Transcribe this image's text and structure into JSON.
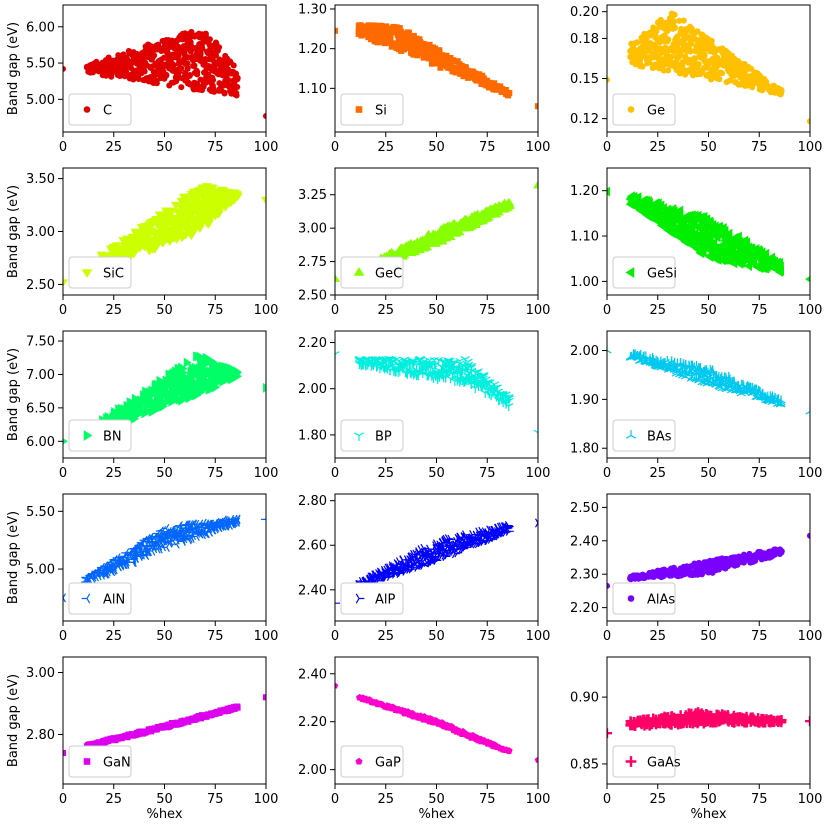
{
  "chart_data": [
    {
      "type": "scatter",
      "legend": "C",
      "color": "#e00000",
      "marker": "circle",
      "ylabel": "Band gap (eV)",
      "xlabel": "",
      "xlim": [
        0,
        100
      ],
      "xticks": [
        "0",
        "25",
        "50",
        "75",
        "100"
      ],
      "ylim": [
        4.55,
        6.3
      ],
      "yticks": [
        5.0,
        5.5,
        6.0
      ],
      "ytick_labels": [
        "5.00",
        "5.50",
        "6.00"
      ],
      "endpoints": [
        [
          0,
          5.42
        ],
        [
          100,
          4.77
        ]
      ],
      "cloud": {
        "x0": 12,
        "x1": 86,
        "peak": 68,
        "startLow": 5.36,
        "startHigh": 5.48,
        "peakLow": 5.12,
        "peakHigh": 6.0,
        "endLow": 5.05,
        "endHigh": 5.45
      },
      "legend_position": "lower-left"
    },
    {
      "type": "scatter",
      "legend": "Si",
      "color": "#ff6a00",
      "marker": "square",
      "ylabel": "",
      "xlabel": "",
      "xlim": [
        0,
        100
      ],
      "xticks": [
        "0",
        "25",
        "50",
        "75",
        "100"
      ],
      "ylim": [
        0.99,
        1.31
      ],
      "yticks": [
        1.1,
        1.2,
        1.3
      ],
      "ytick_labels": [
        "1.10",
        "1.20",
        "1.30"
      ],
      "endpoints": [
        [
          0,
          1.245
        ],
        [
          100,
          1.055
        ]
      ],
      "cloud": {
        "x0": 12,
        "x1": 86,
        "peak": 30,
        "startLow": 1.23,
        "startHigh": 1.26,
        "peakLow": 1.2,
        "peakHigh": 1.26,
        "endLow": 1.08,
        "endHigh": 1.09
      },
      "legend_position": "lower-left"
    },
    {
      "type": "scatter",
      "legend": "Ge",
      "color": "#ffc000",
      "marker": "circle",
      "ylabel": "",
      "xlabel": "",
      "xlim": [
        0,
        100
      ],
      "xticks": [
        "0",
        "25",
        "50",
        "75",
        "100"
      ],
      "ylim": [
        0.11,
        0.205
      ],
      "yticks": [
        0.12,
        0.15,
        0.18,
        0.2
      ],
      "ytick_labels": [
        "0.12",
        "0.15",
        "0.18",
        "0.20"
      ],
      "endpoints": [
        [
          0,
          0.149
        ],
        [
          100,
          0.118
        ]
      ],
      "cloud": {
        "x0": 12,
        "x1": 86,
        "peak": 32,
        "startLow": 0.16,
        "startHigh": 0.177,
        "peakLow": 0.155,
        "peakHigh": 0.2,
        "endLow": 0.138,
        "endHigh": 0.141
      },
      "legend_position": "lower-left"
    },
    {
      "type": "scatter",
      "legend": "SiC",
      "color": "#ccff00",
      "marker": "triangle-down",
      "ylabel": "Band gap (eV)",
      "xlabel": "",
      "xlim": [
        0,
        100
      ],
      "xticks": [
        "0",
        "25",
        "50",
        "75",
        "100"
      ],
      "ylim": [
        2.4,
        3.6
      ],
      "yticks": [
        2.5,
        3.0,
        3.5
      ],
      "ytick_labels": [
        "2.50",
        "3.00",
        "3.50"
      ],
      "endpoints": [
        [
          0,
          2.52
        ],
        [
          100,
          3.3
        ]
      ],
      "cloud": {
        "x0": 12,
        "x1": 86,
        "peak": 68,
        "startLow": 2.6,
        "startHigh": 2.68,
        "peakLow": 3.0,
        "peakHigh": 3.44,
        "endLow": 3.33,
        "endHigh": 3.37
      },
      "legend_position": "lower-left"
    },
    {
      "type": "scatter",
      "legend": "GeC",
      "color": "#88ff00",
      "marker": "triangle-up",
      "ylabel": "",
      "xlabel": "",
      "xlim": [
        0,
        100
      ],
      "xticks": [
        "0",
        "25",
        "50",
        "75",
        "100"
      ],
      "ylim": [
        2.5,
        3.45
      ],
      "yticks": [
        2.5,
        2.75,
        3.0,
        3.25
      ],
      "ytick_labels": [
        "2.50",
        "2.75",
        "3.00",
        "3.25"
      ],
      "endpoints": [
        [
          0,
          2.62
        ],
        [
          100,
          3.32
        ]
      ],
      "cloud": {
        "x0": 12,
        "x1": 86,
        "peak": 50,
        "startLow": 2.66,
        "startHigh": 2.7,
        "peakLow": 2.88,
        "peakHigh": 2.98,
        "endLow": 3.15,
        "endHigh": 3.2
      },
      "legend_position": "lower-left"
    },
    {
      "type": "scatter",
      "legend": "GeSi",
      "color": "#00ee00",
      "marker": "triangle-left",
      "ylabel": "",
      "xlabel": "",
      "xlim": [
        0,
        100
      ],
      "xticks": [
        "0",
        "25",
        "50",
        "75",
        "100"
      ],
      "ylim": [
        0.97,
        1.25
      ],
      "yticks": [
        1.0,
        1.1,
        1.2
      ],
      "ytick_labels": [
        "1.00",
        "1.10",
        "1.20"
      ],
      "endpoints": [
        [
          0,
          1.198
        ],
        [
          100,
          1.005
        ]
      ],
      "cloud": {
        "x0": 12,
        "x1": 86,
        "peak": 50,
        "startLow": 1.17,
        "startHigh": 1.19,
        "peakLow": 1.05,
        "peakHigh": 1.14,
        "endLow": 1.02,
        "endHigh": 1.04
      },
      "legend_position": "lower-left"
    },
    {
      "type": "scatter",
      "legend": "BN",
      "color": "#00ff66",
      "marker": "triangle-right",
      "ylabel": "Band gap (eV)",
      "xlabel": "",
      "xlim": [
        0,
        100
      ],
      "xticks": [
        "0",
        "25",
        "50",
        "75",
        "100"
      ],
      "ylim": [
        5.75,
        7.65
      ],
      "yticks": [
        6.0,
        6.5,
        7.0,
        7.5
      ],
      "ytick_labels": [
        "6.00",
        "6.50",
        "7.00",
        "7.50"
      ],
      "endpoints": [
        [
          0,
          6.0
        ],
        [
          100,
          6.8
        ]
      ],
      "cloud": {
        "x0": 12,
        "x1": 86,
        "peak": 67,
        "startLow": 6.08,
        "startHigh": 6.18,
        "peakLow": 6.7,
        "peakHigh": 7.3,
        "endLow": 6.95,
        "endHigh": 7.05
      },
      "legend_position": "lower-left"
    },
    {
      "type": "scatter",
      "legend": "BP",
      "color": "#00eedd",
      "marker": "tri-down",
      "ylabel": "",
      "xlabel": "",
      "xlim": [
        0,
        100
      ],
      "xticks": [
        "0",
        "25",
        "50",
        "75",
        "100"
      ],
      "ylim": [
        1.7,
        2.25
      ],
      "yticks": [
        1.8,
        2.0,
        2.2
      ],
      "ytick_labels": [
        "1.80",
        "2.00",
        "2.20"
      ],
      "endpoints": [
        [
          0,
          2.15
        ],
        [
          100,
          1.81
        ]
      ],
      "cloud": {
        "x0": 12,
        "x1": 86,
        "peak": 65,
        "startLow": 2.1,
        "startHigh": 2.13,
        "peakLow": 2.02,
        "peakHigh": 2.13,
        "endLow": 1.92,
        "endHigh": 1.96
      },
      "legend_position": "lower-left"
    },
    {
      "type": "scatter",
      "legend": "BAs",
      "color": "#00c8ee",
      "marker": "tri-up",
      "ylabel": "",
      "xlabel": "",
      "xlim": [
        0,
        100
      ],
      "xticks": [
        "0",
        "25",
        "50",
        "75",
        "100"
      ],
      "ylim": [
        1.78,
        2.04
      ],
      "yticks": [
        1.8,
        1.9,
        2.0
      ],
      "ytick_labels": [
        "1.80",
        "1.90",
        "2.00"
      ],
      "endpoints": [
        [
          0,
          2.0
        ],
        [
          100,
          1.875
        ]
      ],
      "cloud": {
        "x0": 12,
        "x1": 86,
        "peak": 50,
        "startLow": 1.985,
        "startHigh": 1.995,
        "peakLow": 1.93,
        "peakHigh": 1.965,
        "endLow": 1.888,
        "endHigh": 1.898
      },
      "legend_position": "lower-left"
    },
    {
      "type": "scatter",
      "legend": "AlN",
      "color": "#0066ff",
      "marker": "tri-left",
      "ylabel": "Band gap (eV)",
      "xlabel": "",
      "xlim": [
        0,
        100
      ],
      "xticks": [
        "0",
        "25",
        "50",
        "75",
        "100"
      ],
      "ylim": [
        4.55,
        5.65
      ],
      "yticks": [
        5.0,
        5.5
      ],
      "ytick_labels": [
        "5.00",
        "5.50"
      ],
      "endpoints": [
        [
          0,
          4.75
        ],
        [
          100,
          5.43
        ]
      ],
      "cloud": {
        "x0": 12,
        "x1": 86,
        "peak": 50,
        "startLow": 4.88,
        "startHigh": 4.93,
        "peakLow": 5.18,
        "peakHigh": 5.36,
        "endLow": 5.4,
        "endHigh": 5.44
      },
      "legend_position": "lower-left"
    },
    {
      "type": "scatter",
      "legend": "AlP",
      "color": "#0000ff",
      "marker": "tri-right",
      "ylabel": "",
      "xlabel": "",
      "xlim": [
        0,
        100
      ],
      "xticks": [
        "0",
        "25",
        "50",
        "75",
        "100"
      ],
      "ylim": [
        2.26,
        2.83
      ],
      "yticks": [
        2.4,
        2.6,
        2.8
      ],
      "ytick_labels": [
        "2.40",
        "2.60",
        "2.80"
      ],
      "endpoints": [
        [
          0,
          2.34
        ],
        [
          100,
          2.7
        ]
      ],
      "cloud": {
        "x0": 12,
        "x1": 86,
        "peak": 50,
        "startLow": 2.41,
        "startHigh": 2.43,
        "peakLow": 2.53,
        "peakHigh": 2.62,
        "endLow": 2.66,
        "endHigh": 2.69
      },
      "legend_position": "lower-left"
    },
    {
      "type": "scatter",
      "legend": "AlAs",
      "color": "#7a00ff",
      "marker": "circle",
      "ylabel": "",
      "xlabel": "",
      "xlim": [
        0,
        100
      ],
      "xticks": [
        "0",
        "25",
        "50",
        "75",
        "100"
      ],
      "ylim": [
        2.16,
        2.54
      ],
      "yticks": [
        2.2,
        2.3,
        2.4,
        2.5
      ],
      "ytick_labels": [
        "2.20",
        "2.30",
        "2.40",
        "2.50"
      ],
      "endpoints": [
        [
          0,
          2.265
        ],
        [
          100,
          2.415
        ]
      ],
      "cloud": {
        "x0": 12,
        "x1": 86,
        "peak": 50,
        "startLow": 2.285,
        "startHigh": 2.295,
        "peakLow": 2.3,
        "peakHigh": 2.34,
        "endLow": 2.36,
        "endHigh": 2.38
      },
      "legend_position": "lower-left"
    },
    {
      "type": "scatter",
      "legend": "GaN",
      "color": "#dd00ee",
      "marker": "square",
      "ylabel": "Band gap (eV)",
      "xlabel": "%hex",
      "xlim": [
        0,
        100
      ],
      "xticks": [
        "0",
        "25",
        "50",
        "75",
        "100"
      ],
      "ylim": [
        2.64,
        3.05
      ],
      "yticks": [
        2.8,
        3.0
      ],
      "ytick_labels": [
        "2.80",
        "3.00"
      ],
      "endpoints": [
        [
          0,
          2.74
        ],
        [
          100,
          2.92
        ]
      ],
      "cloud": {
        "x0": 12,
        "x1": 86,
        "peak": 50,
        "startLow": 2.76,
        "startHigh": 2.766,
        "peakLow": 2.82,
        "peakHigh": 2.83,
        "endLow": 2.885,
        "endHigh": 2.892
      },
      "legend_position": "lower-left"
    },
    {
      "type": "scatter",
      "legend": "GaP",
      "color": "#ff00cc",
      "marker": "pentagon",
      "ylabel": "",
      "xlabel": "%hex",
      "xlim": [
        0,
        100
      ],
      "xticks": [
        "0",
        "25",
        "50",
        "75",
        "100"
      ],
      "ylim": [
        1.94,
        2.47
      ],
      "yticks": [
        2.0,
        2.2,
        2.4
      ],
      "ytick_labels": [
        "2.00",
        "2.20",
        "2.40"
      ],
      "endpoints": [
        [
          0,
          2.35
        ],
        [
          100,
          2.04
        ]
      ],
      "cloud": {
        "x0": 12,
        "x1": 86,
        "peak": 50,
        "startLow": 2.295,
        "startHigh": 2.305,
        "peakLow": 2.19,
        "peakHigh": 2.205,
        "endLow": 2.07,
        "endHigh": 2.08
      },
      "legend_position": "lower-left"
    },
    {
      "type": "scatter",
      "legend": "GaAs",
      "color": "#ff0066",
      "marker": "plus",
      "ylabel": "",
      "xlabel": "%hex",
      "xlim": [
        0,
        100
      ],
      "xticks": [
        "0",
        "25",
        "50",
        "75",
        "100"
      ],
      "ylim": [
        0.835,
        0.93
      ],
      "yticks": [
        0.85,
        0.9
      ],
      "ytick_labels": [
        "0.85",
        "0.90"
      ],
      "endpoints": [
        [
          0,
          0.873
        ],
        [
          100,
          0.882
        ]
      ],
      "cloud": {
        "x0": 12,
        "x1": 86,
        "peak": 45,
        "startLow": 0.878,
        "startHigh": 0.882,
        "peakLow": 0.88,
        "peakHigh": 0.889,
        "endLow": 0.881,
        "endHigh": 0.883
      },
      "legend_position": "lower-left"
    }
  ]
}
